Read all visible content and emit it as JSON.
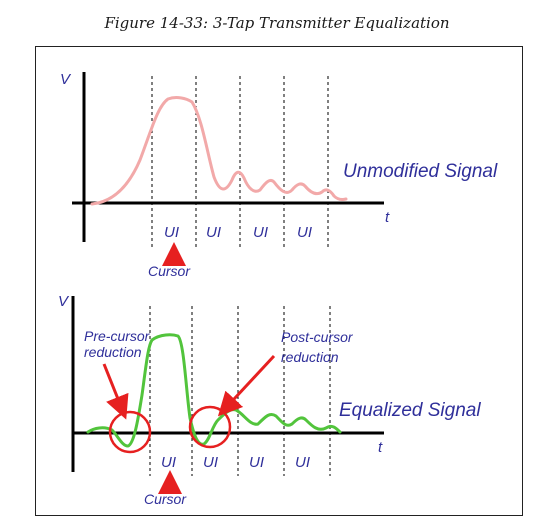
{
  "caption": "Figure 14-33: 3-Tap Transmitter Equalization",
  "top_panel": {
    "y_axis_label": "V",
    "x_axis_label": "t",
    "signal_label": "Unmodified Signal",
    "ui_labels": [
      "UI",
      "UI",
      "UI",
      "UI"
    ],
    "cursor_label": "Cursor"
  },
  "bottom_panel": {
    "y_axis_label": "V",
    "x_axis_label": "t",
    "signal_label": "Equalized Signal",
    "ui_labels": [
      "UI",
      "UI",
      "UI",
      "UI"
    ],
    "cursor_label": "Cursor",
    "pre_cursor_label": [
      "Pre-cursor",
      "reduction"
    ],
    "post_cursor_label": [
      "Post-cursor",
      "reduction"
    ]
  },
  "colors": {
    "unmodified_signal": "#f2a9a9",
    "equalized_signal": "#52c43c",
    "label_text": "#2f2f9a",
    "arrow": "#e62020",
    "axis": "#000000"
  }
}
